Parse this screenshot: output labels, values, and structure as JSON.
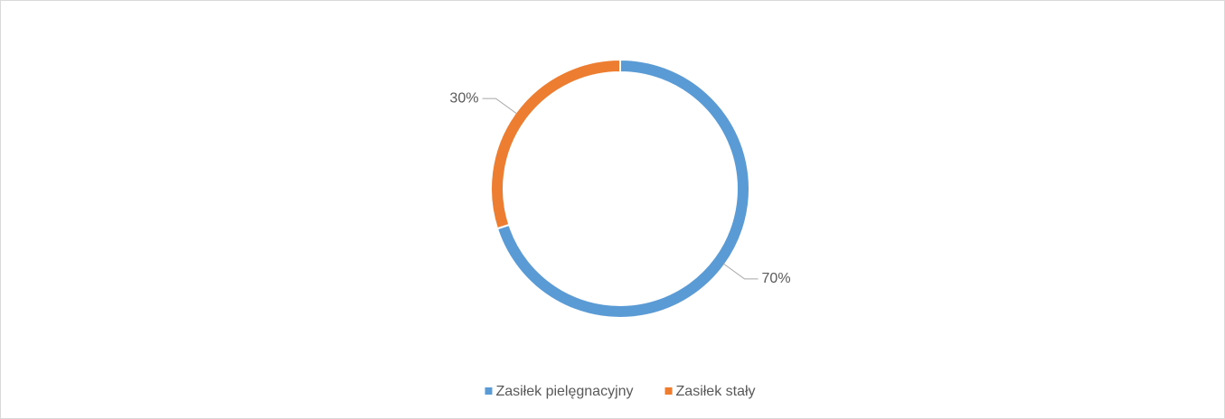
{
  "chart_data": {
    "type": "donut",
    "categories": [
      "Zasiłek pielęgnacyjny",
      "Zasiłek stały"
    ],
    "values": [
      70,
      30
    ],
    "value_labels": [
      "70%",
      "30%"
    ],
    "colors": [
      "#5b9bd5",
      "#ed7d31"
    ],
    "legend": "bottom"
  }
}
